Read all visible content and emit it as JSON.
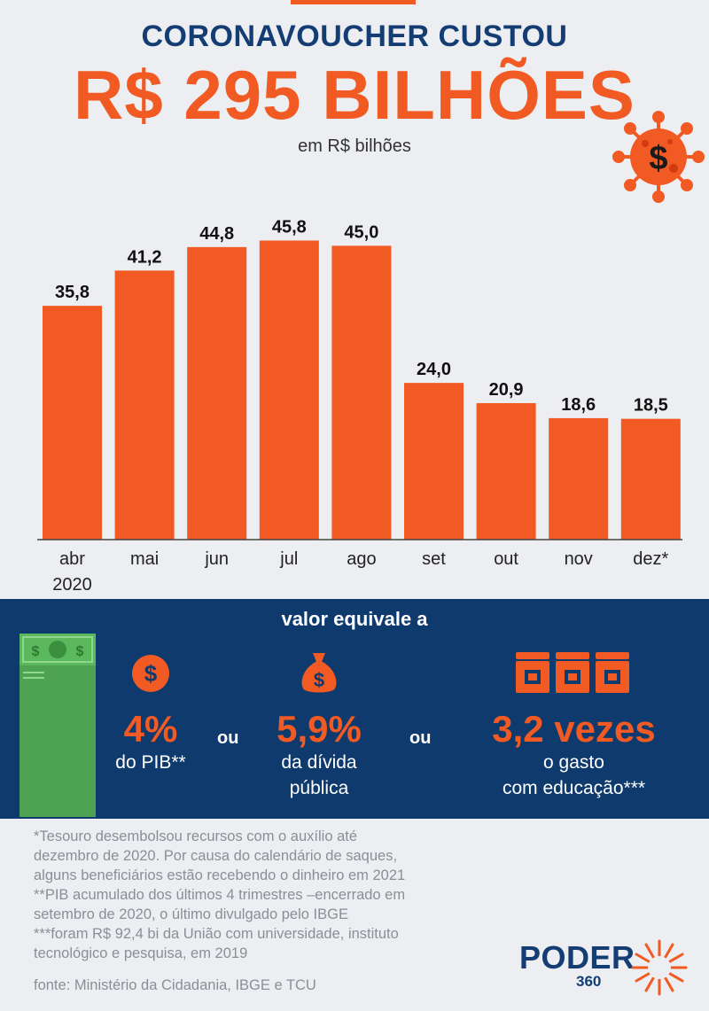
{
  "header": {
    "line1": "CORONAVOUCHER CUSTOU",
    "line2": "R$ 295 BILHÕES",
    "subtitle": "em R$ bilhões"
  },
  "chart_data": {
    "type": "bar",
    "title": "CORONAVOUCHER CUSTOU R$ 295 BILHÕES",
    "subtitle": "em R$ bilhões",
    "categories": [
      "abr",
      "mai",
      "jun",
      "jul",
      "ago",
      "set",
      "out",
      "nov",
      "dez*"
    ],
    "category_sublabels": [
      "2020",
      "",
      "",
      "",
      "",
      "",
      "",
      "",
      ""
    ],
    "values": [
      35.8,
      41.2,
      44.8,
      45.8,
      45.0,
      24.0,
      20.9,
      18.6,
      18.5
    ],
    "value_labels": [
      "35,8",
      "41,2",
      "44,8",
      "45,8",
      "45,0",
      "24,0",
      "20,9",
      "18,6",
      "18,5"
    ],
    "xlabel": "",
    "ylabel": "R$ bilhões",
    "ylim": [
      0,
      46
    ],
    "grid": false,
    "bar_color": "#f15a22"
  },
  "equivalence": {
    "title": "valor equivale a",
    "connector": "ou",
    "items": [
      {
        "icon": "dollar-coin-icon",
        "value": "4%",
        "line1": "do PIB**",
        "line2": ""
      },
      {
        "icon": "money-bag-icon",
        "value": "5,9%",
        "line1": "da dívida",
        "line2": "pública"
      },
      {
        "icon": "lockers-icon",
        "value": "3,2 vezes",
        "line1": "o gasto",
        "line2": "com educação***"
      }
    ]
  },
  "notes": [
    "*Tesouro desembolsou recursos com o auxílio até",
    "dezembro de 2020. Por causa do calendário de saques,",
    "alguns beneficiários estão recebendo o dinheiro em 2021",
    "**PIB acumulado dos últimos 4 trimestres –encerrado em",
    "setembro de 2020, o último divulgado pelo IBGE",
    "***foram R$ 92,4 bi da União com universidade, instituto",
    "tecnológico e pesquisa, em 2019"
  ],
  "source": "fonte: Ministério da Cidadania, IBGE e TCU",
  "brand": {
    "name": "PODER",
    "number": "360"
  },
  "colors": {
    "accent": "#f15a22",
    "navy": "#0f3a6d",
    "background": "#eceef1"
  }
}
